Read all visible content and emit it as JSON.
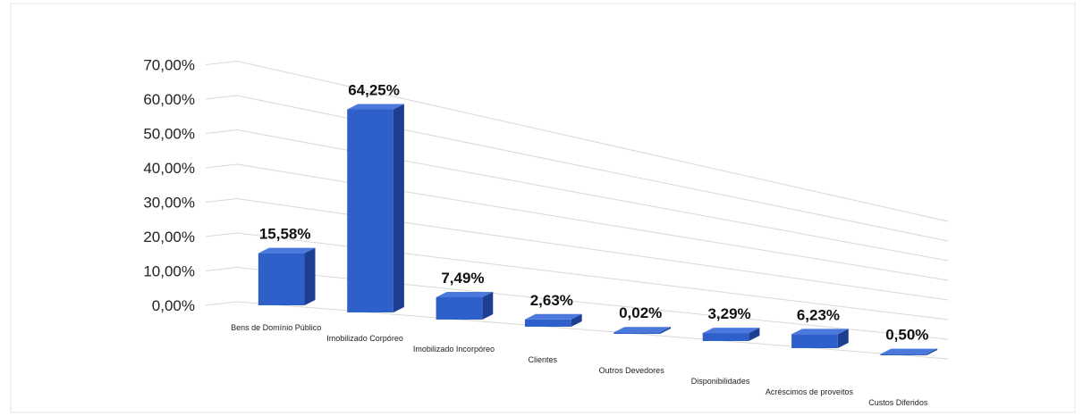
{
  "chart_data": {
    "type": "bar",
    "title": "",
    "xlabel": "",
    "ylabel": "",
    "ylim": [
      0,
      70
    ],
    "y_ticks": [
      "0,00%",
      "10,00%",
      "20,00%",
      "30,00%",
      "40,00%",
      "50,00%",
      "60,00%",
      "70,00%"
    ],
    "categories": [
      "Bens de Domínio Público",
      "Imobilizado Corpóreo",
      "Imobilizado Incorpóreo",
      "Clientes",
      "Outros Devedores",
      "Disponibilidades",
      "Acréscimos de proveitos",
      "Custos Diferidos"
    ],
    "values": [
      15.58,
      64.25,
      7.49,
      2.63,
      0.02,
      3.29,
      6.23,
      0.5
    ],
    "data_labels": [
      "15,58%",
      "64,25%",
      "7,49%",
      "2,63%",
      "0,02%",
      "3,29%",
      "6,23%",
      "0,50%"
    ],
    "bar_color": "#2f5fc8",
    "bar_side_color": "#1c3f92",
    "bar_top_color": "#4a78dc",
    "grid": true,
    "legend": "none",
    "style": "3d-perspective"
  }
}
